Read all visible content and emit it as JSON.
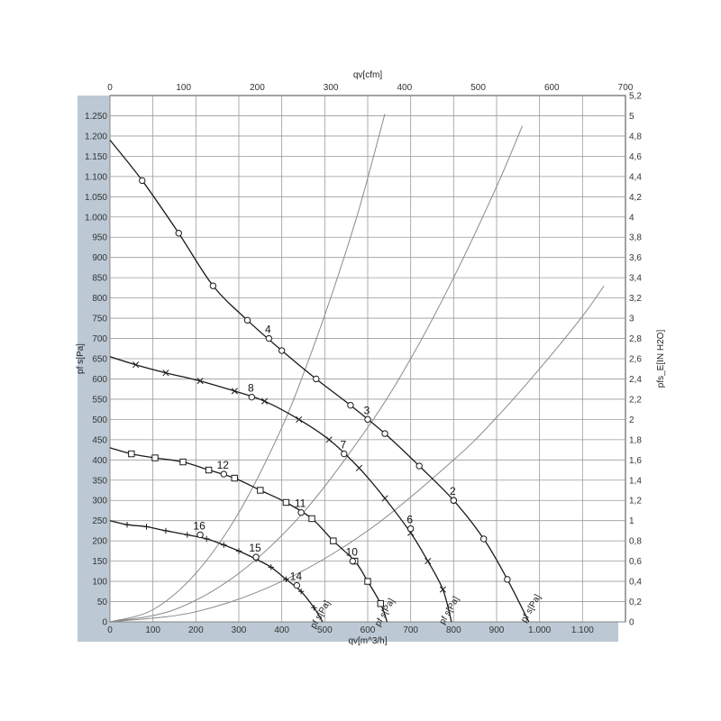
{
  "chart_data": {
    "type": "line",
    "title": "",
    "xlabel": "qv[m^3/h]",
    "x2label": "qv[cfm]",
    "ylabel": "pf s[Pa]",
    "y2label": "pfs_E[IN H2O]",
    "xlim": [
      0,
      1200
    ],
    "ylim": [
      0,
      1300
    ],
    "x2lim": [
      0,
      700
    ],
    "y2lim": [
      0,
      5.2
    ],
    "grid": true,
    "x_ticks": [
      0,
      100,
      200,
      300,
      400,
      500,
      600,
      700,
      800,
      900,
      1000,
      1100
    ],
    "x_tick_labels": [
      "0",
      "100",
      "200",
      "300",
      "400",
      "500",
      "600",
      "700",
      "800",
      "900",
      "1.000",
      "1.100"
    ],
    "x2_ticks": [
      0,
      100,
      200,
      300,
      400,
      500,
      600,
      700
    ],
    "x2_tick_labels": [
      "0",
      "100",
      "200",
      "300",
      "400",
      "500",
      "600",
      "700"
    ],
    "y_ticks": [
      0,
      50,
      100,
      150,
      200,
      250,
      300,
      350,
      400,
      450,
      500,
      550,
      600,
      650,
      700,
      750,
      800,
      850,
      900,
      950,
      1000,
      1050,
      1100,
      1150,
      1200,
      1250
    ],
    "y_tick_labels": [
      "0",
      "50",
      "100",
      "150",
      "200",
      "250",
      "300",
      "350",
      "400",
      "450",
      "500",
      "550",
      "600",
      "650",
      "700",
      "750",
      "800",
      "850",
      "900",
      "950",
      "1.000",
      "1.050",
      "1.100",
      "1.150",
      "1.200",
      "1.250"
    ],
    "y2_ticks": [
      0,
      0.2,
      0.4,
      0.6,
      0.8,
      1,
      1.2,
      1.4,
      1.6,
      1.8,
      2,
      2.2,
      2.4,
      2.6,
      2.8,
      3,
      3.2,
      3.4,
      3.6,
      3.8,
      4,
      4.2,
      4.4,
      4.6,
      4.8,
      5,
      5.2
    ],
    "y2_tick_labels": [
      "0",
      "0,2",
      "0,4",
      "0,6",
      "0,8",
      "1",
      "1,2",
      "1,4",
      "1,6",
      "1,8",
      "2",
      "2,2",
      "2,4",
      "2,6",
      "2,8",
      "3",
      "3,2",
      "3,4",
      "3,6",
      "3,8",
      "4",
      "4,2",
      "4,4",
      "4,6",
      "4,8",
      "5",
      "5,2"
    ],
    "series": [
      {
        "label": "pf s[Pa]",
        "marker": "circle",
        "label_at": [
          985,
          30
        ],
        "points": [
          [
            0,
            1190
          ],
          [
            75,
            1090
          ],
          [
            160,
            960
          ],
          [
            240,
            830
          ],
          [
            320,
            745
          ],
          [
            400,
            670
          ],
          [
            480,
            600
          ],
          [
            560,
            535
          ],
          [
            640,
            465
          ],
          [
            720,
            385
          ],
          [
            800,
            300
          ],
          [
            870,
            205
          ],
          [
            925,
            105
          ],
          [
            975,
            0
          ]
        ]
      },
      {
        "label": "pf s[Pa]",
        "marker": "x",
        "label_at": [
          795,
          25
        ],
        "points": [
          [
            0,
            655
          ],
          [
            60,
            635
          ],
          [
            130,
            615
          ],
          [
            210,
            595
          ],
          [
            290,
            570
          ],
          [
            360,
            545
          ],
          [
            440,
            500
          ],
          [
            510,
            450
          ],
          [
            580,
            380
          ],
          [
            640,
            305
          ],
          [
            700,
            220
          ],
          [
            740,
            150
          ],
          [
            775,
            80
          ],
          [
            795,
            0
          ]
        ]
      },
      {
        "label": "pf s[Pa]",
        "marker": "square",
        "label_at": [
          645,
          20
        ],
        "points": [
          [
            0,
            430
          ],
          [
            50,
            415
          ],
          [
            105,
            405
          ],
          [
            170,
            395
          ],
          [
            230,
            375
          ],
          [
            290,
            355
          ],
          [
            350,
            325
          ],
          [
            410,
            295
          ],
          [
            470,
            255
          ],
          [
            520,
            200
          ],
          [
            570,
            150
          ],
          [
            600,
            100
          ],
          [
            630,
            45
          ],
          [
            645,
            0
          ]
        ]
      },
      {
        "label": "pf s[Pa]",
        "marker": "plus",
        "label_at": [
          495,
          15
        ],
        "points": [
          [
            0,
            250
          ],
          [
            40,
            240
          ],
          [
            85,
            235
          ],
          [
            130,
            225
          ],
          [
            180,
            215
          ],
          [
            225,
            205
          ],
          [
            265,
            190
          ],
          [
            300,
            175
          ],
          [
            340,
            155
          ],
          [
            375,
            135
          ],
          [
            410,
            105
          ],
          [
            445,
            75
          ],
          [
            475,
            35
          ],
          [
            495,
            0
          ]
        ]
      }
    ],
    "system_curves": [
      {
        "points": [
          [
            0,
            0
          ],
          [
            100,
            30
          ],
          [
            200,
            120
          ],
          [
            300,
            270
          ],
          [
            400,
            480
          ],
          [
            460,
            640
          ],
          [
            520,
            820
          ],
          [
            580,
            1020
          ],
          [
            640,
            1255
          ]
        ]
      },
      {
        "points": [
          [
            0,
            0
          ],
          [
            150,
            30
          ],
          [
            300,
            120
          ],
          [
            450,
            270
          ],
          [
            600,
            480
          ],
          [
            700,
            650
          ],
          [
            800,
            850
          ],
          [
            900,
            1075
          ],
          [
            960,
            1225
          ]
        ]
      },
      {
        "points": [
          [
            0,
            0
          ],
          [
            200,
            25
          ],
          [
            400,
            100
          ],
          [
            600,
            225
          ],
          [
            800,
            400
          ],
          [
            900,
            505
          ],
          [
            1000,
            625
          ],
          [
            1100,
            755
          ],
          [
            1150,
            830
          ]
        ]
      }
    ],
    "operating_points": [
      {
        "label": "2",
        "x": 800,
        "y": 300
      },
      {
        "label": "3",
        "x": 600,
        "y": 500
      },
      {
        "label": "4",
        "x": 370,
        "y": 700
      },
      {
        "label": "6",
        "x": 700,
        "y": 230
      },
      {
        "label": "7",
        "x": 545,
        "y": 415
      },
      {
        "label": "8",
        "x": 330,
        "y": 555
      },
      {
        "label": "10",
        "x": 565,
        "y": 150
      },
      {
        "label": "11",
        "x": 445,
        "y": 270
      },
      {
        "label": "12",
        "x": 265,
        "y": 365
      },
      {
        "label": "14",
        "x": 435,
        "y": 90
      },
      {
        "label": "15",
        "x": 340,
        "y": 160
      },
      {
        "label": "16",
        "x": 210,
        "y": 215
      }
    ]
  }
}
